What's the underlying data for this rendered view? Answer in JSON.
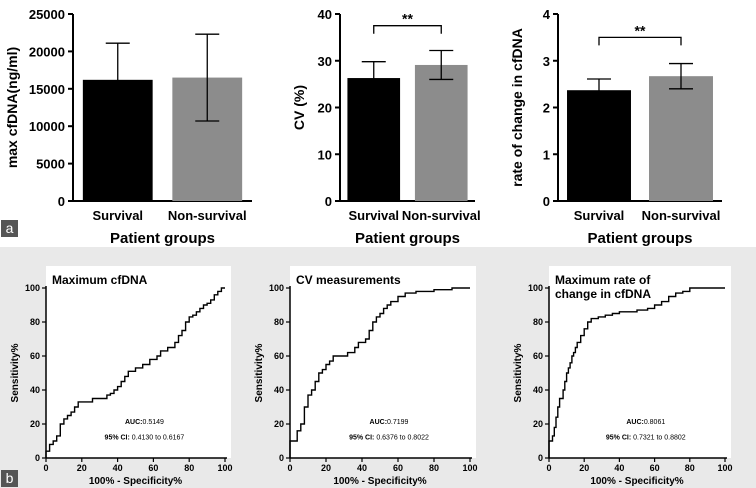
{
  "panel_labels": {
    "a": "a",
    "b": "b"
  },
  "colors": {
    "survival": "#000000",
    "non_survival": "#8c8c8c",
    "roc_line": "#000000",
    "panel_b_bg": "#e9e9e9"
  },
  "chart_data": [
    {
      "type": "bar",
      "categories": [
        "Survival",
        "Non-survival"
      ],
      "values": [
        16200,
        16500
      ],
      "error": [
        4900,
        5800
      ],
      "ylabel": "max cfDNA(ng/ml)",
      "xlabel": "Patient groups",
      "ylim": [
        0,
        25000
      ],
      "yticks": [
        0,
        5000,
        10000,
        15000,
        20000,
        25000
      ],
      "ytick_labels": [
        "0",
        "5000",
        "10000",
        "15000",
        "20000",
        "25000"
      ],
      "significance": ""
    },
    {
      "type": "bar",
      "categories": [
        "Survival",
        "Non-survival"
      ],
      "values": [
        26.3,
        29.1
      ],
      "error": [
        3.5,
        3.1
      ],
      "ylabel": "CV (%)",
      "xlabel": "Patient groups",
      "ylim": [
        0,
        40
      ],
      "yticks": [
        0,
        10,
        20,
        30,
        40
      ],
      "ytick_labels": [
        "0",
        "10",
        "20",
        "30",
        "40"
      ],
      "significance": "**",
      "bracket_y": 37.5
    },
    {
      "type": "bar",
      "categories": [
        "Survival",
        "Non-survival"
      ],
      "values": [
        2.37,
        2.67
      ],
      "error": [
        0.24,
        0.27
      ],
      "ylabel": "rate of change in cfDNA",
      "xlabel": "Patient groups",
      "ylim": [
        0,
        4
      ],
      "yticks": [
        0,
        1,
        2,
        3,
        4
      ],
      "ytick_labels": [
        "0",
        "1",
        "2",
        "3",
        "4"
      ],
      "significance": "**",
      "bracket_y": 3.5
    },
    {
      "type": "line",
      "title": "Maximum cfDNA",
      "xlabel": "100% - Specificity%",
      "ylabel": "Sensitivity%",
      "xlim": [
        0,
        100
      ],
      "ylim": [
        0,
        100
      ],
      "ticks": [
        0,
        20,
        40,
        60,
        80,
        100
      ],
      "tick_labels": [
        "0",
        "20",
        "40",
        "60",
        "80",
        "100"
      ],
      "auc_label": "AUC:",
      "auc_value": "0.5149",
      "ci_label": "95% CI:",
      "ci_value": "0.4130 to 0.6167",
      "x": [
        0,
        0,
        2,
        2,
        4,
        4,
        6,
        6,
        8,
        8,
        10,
        10,
        12,
        12,
        14,
        14,
        16,
        16,
        18,
        18,
        22,
        22,
        26,
        26,
        30,
        30,
        34,
        34,
        36,
        36,
        38,
        38,
        40,
        40,
        42,
        42,
        44,
        44,
        46,
        46,
        50,
        50,
        54,
        54,
        58,
        58,
        62,
        62,
        64,
        64,
        68,
        68,
        72,
        72,
        74,
        74,
        76,
        76,
        78,
        78,
        80,
        80,
        82,
        82,
        84,
        84,
        86,
        86,
        88,
        88,
        90,
        90,
        92,
        92,
        94,
        94,
        96,
        96,
        98,
        98,
        100
      ],
      "y": [
        0,
        4,
        4,
        8,
        8,
        10,
        10,
        13,
        13,
        20,
        20,
        23,
        23,
        25,
        25,
        27,
        27,
        30,
        30,
        33,
        33,
        33,
        33,
        35,
        35,
        35,
        35,
        37,
        37,
        38,
        38,
        40,
        40,
        42,
        42,
        45,
        45,
        48,
        48,
        51,
        51,
        53,
        53,
        55,
        55,
        58,
        58,
        60,
        60,
        63,
        63,
        65,
        65,
        68,
        68,
        72,
        72,
        75,
        75,
        80,
        80,
        83,
        83,
        84,
        84,
        86,
        86,
        88,
        88,
        90,
        90,
        91,
        91,
        93,
        93,
        96,
        96,
        98,
        98,
        100,
        100
      ]
    },
    {
      "type": "line",
      "title": "CV measurements",
      "xlabel": "100% - Specificity%",
      "ylabel": "Sensitivity%",
      "xlim": [
        0,
        100
      ],
      "ylim": [
        0,
        100
      ],
      "ticks": [
        0,
        20,
        40,
        60,
        80,
        100
      ],
      "tick_labels": [
        "0",
        "20",
        "40",
        "60",
        "80",
        "100"
      ],
      "auc_label": "AUC:",
      "auc_value": "0.7199",
      "ci_label": "95% CI:",
      "ci_value": "0.6376 to 0.8022",
      "x": [
        0,
        0,
        4,
        4,
        6,
        6,
        8,
        8,
        10,
        10,
        12,
        12,
        14,
        14,
        16,
        16,
        18,
        18,
        20,
        20,
        22,
        22,
        24,
        24,
        28,
        28,
        32,
        32,
        36,
        36,
        38,
        38,
        42,
        42,
        44,
        44,
        46,
        46,
        48,
        48,
        50,
        50,
        52,
        52,
        54,
        54,
        56,
        56,
        60,
        60,
        64,
        64,
        70,
        70,
        80,
        80,
        90,
        90,
        100
      ],
      "y": [
        0,
        10,
        10,
        16,
        16,
        20,
        20,
        30,
        30,
        37,
        37,
        40,
        40,
        45,
        45,
        50,
        50,
        52,
        52,
        55,
        55,
        57,
        57,
        60,
        60,
        60,
        60,
        62,
        62,
        65,
        65,
        68,
        68,
        70,
        70,
        75,
        75,
        80,
        80,
        83,
        83,
        85,
        85,
        88,
        88,
        90,
        90,
        92,
        92,
        95,
        95,
        97,
        97,
        98,
        98,
        99,
        99,
        100,
        100
      ]
    },
    {
      "type": "line",
      "title": "Maximum rate of change in cfDNA",
      "title_lines": [
        "Maximum rate of",
        "change in cfDNA"
      ],
      "xlabel": "100% - Specificity%",
      "ylabel": "Sensitivity%",
      "xlim": [
        0,
        100
      ],
      "ylim": [
        0,
        100
      ],
      "ticks": [
        0,
        20,
        40,
        60,
        80,
        100
      ],
      "tick_labels": [
        "0",
        "20",
        "40",
        "60",
        "80",
        "100"
      ],
      "auc_label": "AUC:",
      "auc_value": "0.8061",
      "ci_label": "95% CI:",
      "ci_value": "0.7321 to 0.8802",
      "x": [
        0,
        0,
        2,
        2,
        3,
        3,
        4,
        4,
        5,
        5,
        6,
        6,
        8,
        8,
        9,
        9,
        10,
        10,
        11,
        11,
        12,
        12,
        13,
        13,
        14,
        14,
        15,
        15,
        16,
        16,
        18,
        18,
        20,
        20,
        22,
        22,
        24,
        24,
        28,
        28,
        32,
        32,
        36,
        36,
        40,
        40,
        50,
        50,
        56,
        56,
        60,
        60,
        64,
        64,
        68,
        68,
        72,
        72,
        76,
        76,
        80,
        80,
        90,
        90,
        100
      ],
      "y": [
        0,
        10,
        10,
        13,
        13,
        18,
        18,
        24,
        24,
        30,
        30,
        35,
        35,
        40,
        40,
        45,
        45,
        50,
        50,
        53,
        53,
        56,
        56,
        60,
        60,
        62,
        62,
        65,
        65,
        68,
        68,
        72,
        72,
        76,
        76,
        80,
        80,
        82,
        82,
        83,
        83,
        84,
        84,
        85,
        85,
        86,
        86,
        87,
        87,
        88,
        88,
        90,
        90,
        92,
        92,
        95,
        95,
        97,
        97,
        98,
        98,
        100,
        100,
        100,
        100
      ]
    }
  ]
}
